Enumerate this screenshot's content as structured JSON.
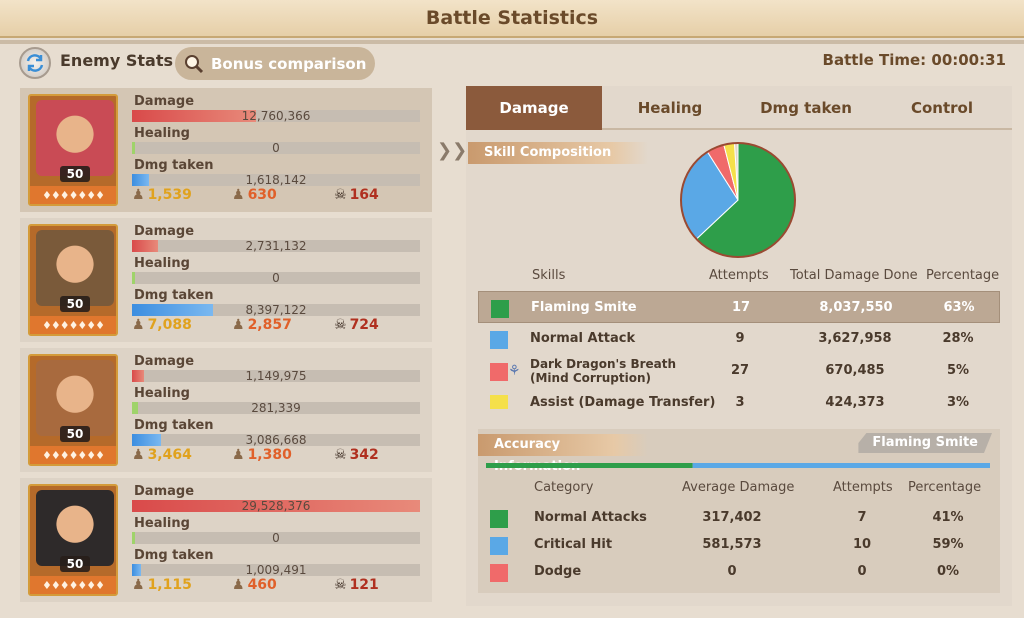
{
  "title": "Battle Statistics",
  "header": {
    "enemy_stats": "Enemy Stats",
    "bonus_comparison": "Bonus comparison",
    "battle_time": "Battle Time: 00:00:31"
  },
  "stat_labels": {
    "damage": "Damage",
    "healing": "Healing",
    "dmg_taken": "Dmg taken"
  },
  "heroes": [
    {
      "level": "50",
      "damage": "12,760,366",
      "damage_ratio": 0.43,
      "healing": "0",
      "healing_ratio": 0.0,
      "dmg_taken": "1,618,142",
      "dmg_taken_ratio": 0.06,
      "c1": "1,539",
      "c2": "630",
      "c3": "164",
      "skin": "#c94b55"
    },
    {
      "level": "50",
      "damage": "2,731,132",
      "damage_ratio": 0.09,
      "healing": "0",
      "healing_ratio": 0.0,
      "dmg_taken": "8,397,122",
      "dmg_taken_ratio": 0.28,
      "c1": "7,088",
      "c2": "2,857",
      "c3": "724",
      "skin": "#7a5a3a"
    },
    {
      "level": "50",
      "damage": "1,149,975",
      "damage_ratio": 0.04,
      "healing": "281,339",
      "healing_ratio": 0.02,
      "dmg_taken": "3,086,668",
      "dmg_taken_ratio": 0.1,
      "c1": "3,464",
      "c2": "1,380",
      "c3": "342",
      "skin": "#a86a3e"
    },
    {
      "level": "50",
      "damage": "29,528,376",
      "damage_ratio": 1.0,
      "healing": "0",
      "healing_ratio": 0.0,
      "dmg_taken": "1,009,491",
      "dmg_taken_ratio": 0.03,
      "c1": "1,115",
      "c2": "460",
      "c3": "121",
      "skin": "#2e2a2a"
    }
  ],
  "tabs": [
    "Damage",
    "Healing",
    "Dmg taken",
    "Control"
  ],
  "skill_composition": {
    "header": "Skill Composition",
    "columns": {
      "skills": "Skills",
      "attempts": "Attempts",
      "total": "Total Damage Done",
      "percentage": "Percentage"
    },
    "rows": [
      {
        "name": "Flaming Smite",
        "attempts": "17",
        "total": "8,037,550",
        "percentage": "63%",
        "color": "#2e9e4a",
        "share": 0.63
      },
      {
        "name": "Normal Attack",
        "attempts": "9",
        "total": "3,627,958",
        "percentage": "28%",
        "color": "#5aa8e6",
        "share": 0.28
      },
      {
        "name": "Dark Dragon's Breath (Mind Corruption)",
        "attempts": "27",
        "total": "670,485",
        "percentage": "5%",
        "color": "#f06a6a",
        "share": 0.05
      },
      {
        "name": "Assist (Damage Transfer)",
        "attempts": "3",
        "total": "424,373",
        "percentage": "3%",
        "color": "#f5e04a",
        "share": 0.03
      }
    ]
  },
  "accuracy": {
    "header": "Accuracy Information",
    "badge": "Flaming Smite",
    "columns": {
      "category": "Category",
      "avg": "Average Damage",
      "attempts": "Attempts",
      "percentage": "Percentage"
    },
    "rows": [
      {
        "name": "Normal Attacks",
        "avg": "317,402",
        "attempts": "7",
        "percentage": "41%",
        "color": "#2e9e4a"
      },
      {
        "name": "Critical Hit",
        "avg": "581,573",
        "attempts": "10",
        "percentage": "59%",
        "color": "#5aa8e6"
      },
      {
        "name": "Dodge",
        "avg": "0",
        "attempts": "0",
        "percentage": "0%",
        "color": "#f06a6a"
      }
    ]
  }
}
